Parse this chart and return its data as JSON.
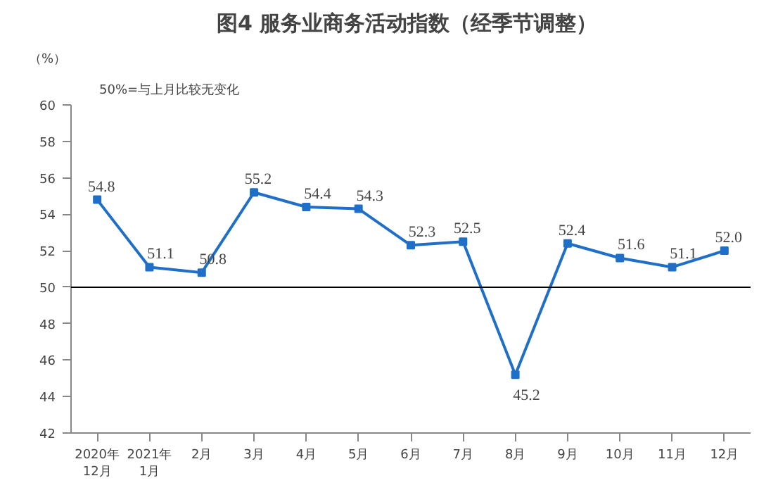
{
  "chart_data": {
    "type": "line",
    "title": "图4  服务业商务活动指数（经季节调整）",
    "ylabel": "（%）",
    "annotations": [
      "50%=与上月比较无变化"
    ],
    "categories": [
      "2020年\n12月",
      "2021年\n1月",
      "2月",
      "3月",
      "4月",
      "5月",
      "6月",
      "7月",
      "8月",
      "9月",
      "10月",
      "11月",
      "12月"
    ],
    "series": [
      {
        "color": "#1f6fc8",
        "values": [
          54.8,
          51.1,
          50.8,
          55.2,
          54.4,
          54.3,
          52.3,
          52.5,
          45.2,
          52.4,
          51.6,
          51.1,
          52.0
        ],
        "value_labels": [
          "54.8",
          "51.1",
          "50.8",
          "55.2",
          "54.4",
          "54.3",
          "52.3",
          "52.5",
          "45.2",
          "52.4",
          "51.6",
          "51.1",
          "52.0"
        ]
      }
    ],
    "ylim": [
      42,
      60
    ],
    "yticks": [
      42,
      44,
      46,
      48,
      50,
      52,
      54,
      56,
      58,
      60
    ],
    "ref_lines": [
      {
        "axis": "y",
        "value": 50,
        "color": "#000000"
      }
    ],
    "marker": "square"
  }
}
